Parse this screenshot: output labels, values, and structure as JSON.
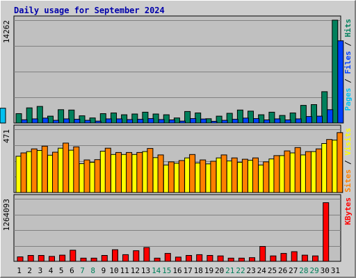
{
  "title": "Daily usage for September 2024",
  "legend": {
    "top": [
      {
        "text": "Pages",
        "color": "#00c0f0"
      },
      {
        "text": " / ",
        "color": "#000000"
      },
      {
        "text": "Files",
        "color": "#0040ff"
      },
      {
        "text": " / ",
        "color": "#000000"
      },
      {
        "text": "Hits",
        "color": "#00805c"
      }
    ],
    "middle": [
      {
        "text": "Sites",
        "color": "#ff8000"
      },
      {
        "text": " / ",
        "color": "#000000"
      },
      {
        "text": "Visits",
        "color": "#ffff00"
      }
    ],
    "bottom": [
      {
        "text": "KBytes",
        "color": "#ff0000"
      }
    ]
  },
  "chart_data": [
    {
      "type": "bar",
      "categories": [
        "1",
        "2",
        "3",
        "4",
        "5",
        "6",
        "7",
        "8",
        "9",
        "10",
        "11",
        "12",
        "13",
        "14",
        "15",
        "16",
        "17",
        "18",
        "19",
        "20",
        "21",
        "22",
        "23",
        "24",
        "25",
        "26",
        "27",
        "28",
        "29",
        "30",
        "31"
      ],
      "weekend_days": [
        "7",
        "8",
        "14",
        "15",
        "21",
        "22",
        "28",
        "29"
      ],
      "ytick_labels": [
        "14262"
      ],
      "ylim": [
        0,
        14262
      ],
      "series": [
        {
          "name": "Hits",
          "color": "#00805c",
          "values": [
            1300,
            2100,
            2300,
            950,
            1850,
            1800,
            1000,
            700,
            1300,
            1400,
            1150,
            1250,
            1500,
            1250,
            1150,
            700,
            1600,
            1400,
            600,
            950,
            1350,
            1800,
            1650,
            1150,
            1500,
            1050,
            1400,
            2450,
            2550,
            4350,
            14262
          ]
        },
        {
          "name": "Files",
          "color": "#0040ff",
          "values": [
            450,
            580,
            680,
            380,
            580,
            520,
            380,
            270,
            580,
            580,
            480,
            520,
            620,
            480,
            430,
            270,
            620,
            560,
            240,
            380,
            520,
            680,
            620,
            430,
            580,
            430,
            580,
            910,
            950,
            1850,
            11400
          ]
        },
        {
          "name": "Pages",
          "color": "#00c0f0",
          "values": [
            480,
            600,
            720,
            420,
            610,
            560,
            410,
            300,
            610,
            610,
            520,
            560,
            660,
            520,
            470,
            300,
            660,
            600,
            270,
            420,
            560,
            720,
            660,
            470,
            610,
            470,
            610,
            950,
            990,
            1900,
            2050
          ]
        }
      ]
    },
    {
      "type": "bar",
      "categories": [
        "1",
        "2",
        "3",
        "4",
        "5",
        "6",
        "7",
        "8",
        "9",
        "10",
        "11",
        "12",
        "13",
        "14",
        "15",
        "16",
        "17",
        "18",
        "19",
        "20",
        "21",
        "22",
        "23",
        "24",
        "25",
        "26",
        "27",
        "28",
        "29",
        "30",
        "31"
      ],
      "ytick_labels": [
        "471"
      ],
      "ylim": [
        0,
        471
      ],
      "series": [
        {
          "name": "Visits",
          "color": "#ffff00",
          "values": [
            270,
            305,
            313,
            278,
            330,
            315,
            215,
            225,
            308,
            283,
            283,
            283,
            305,
            260,
            205,
            218,
            258,
            220,
            213,
            258,
            235,
            225,
            240,
            205,
            250,
            275,
            295,
            280,
            305,
            365,
            390
          ]
        },
        {
          "name": "Sites",
          "color": "#ff8000",
          "values": [
            295,
            325,
            345,
            300,
            368,
            340,
            243,
            245,
            330,
            298,
            298,
            298,
            328,
            280,
            228,
            238,
            283,
            243,
            233,
            280,
            258,
            248,
            258,
            228,
            275,
            310,
            335,
            305,
            325,
            395,
            446
          ]
        }
      ]
    },
    {
      "type": "bar",
      "categories": [
        "1",
        "2",
        "3",
        "4",
        "5",
        "6",
        "7",
        "8",
        "9",
        "10",
        "11",
        "12",
        "13",
        "14",
        "15",
        "16",
        "17",
        "18",
        "19",
        "20",
        "21",
        "22",
        "23",
        "24",
        "25",
        "26",
        "27",
        "28",
        "29",
        "30",
        "31"
      ],
      "ytick_labels": [
        "1264093"
      ],
      "ylim": [
        0,
        1264093
      ],
      "series": [
        {
          "name": "KBytes",
          "color": "#ff0000",
          "values": [
            90000,
            120000,
            120000,
            100000,
            125000,
            225000,
            65000,
            65000,
            120000,
            235000,
            135000,
            215000,
            280000,
            65000,
            160000,
            85000,
            120000,
            135000,
            120000,
            110000,
            65000,
            65000,
            75000,
            300000,
            110000,
            160000,
            195000,
            125000,
            110000,
            1185000,
            0
          ]
        }
      ]
    }
  ]
}
